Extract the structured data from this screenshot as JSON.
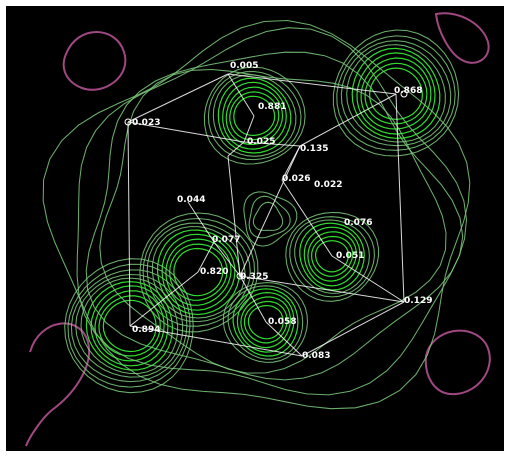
{
  "labels": [
    {
      "id": "top",
      "text": "0.005"
    },
    {
      "id": "top-right-atom",
      "text": "0.868"
    },
    {
      "id": "top-center-atom",
      "text": "0.881"
    },
    {
      "id": "left-edge",
      "text": "0.023"
    },
    {
      "id": "center-top-2",
      "text": "0.025"
    },
    {
      "id": "center-top-3",
      "text": "0.135"
    },
    {
      "id": "center-mid",
      "text": "0.026"
    },
    {
      "id": "center-mid-2",
      "text": "0.022"
    },
    {
      "id": "left-mid",
      "text": "0.044"
    },
    {
      "id": "right-mid",
      "text": "0.076"
    },
    {
      "id": "center-left",
      "text": "0.077"
    },
    {
      "id": "left-atom",
      "text": "0.820"
    },
    {
      "id": "right-atom",
      "text": "0.051"
    },
    {
      "id": "center-bottom",
      "text": "0.325"
    },
    {
      "id": "right-bottom",
      "text": "0.129"
    },
    {
      "id": "bottom-center-atom",
      "text": "0.058"
    },
    {
      "id": "bottom-left-atom",
      "text": "0.894"
    },
    {
      "id": "bottom",
      "text": "0.083"
    }
  ]
}
